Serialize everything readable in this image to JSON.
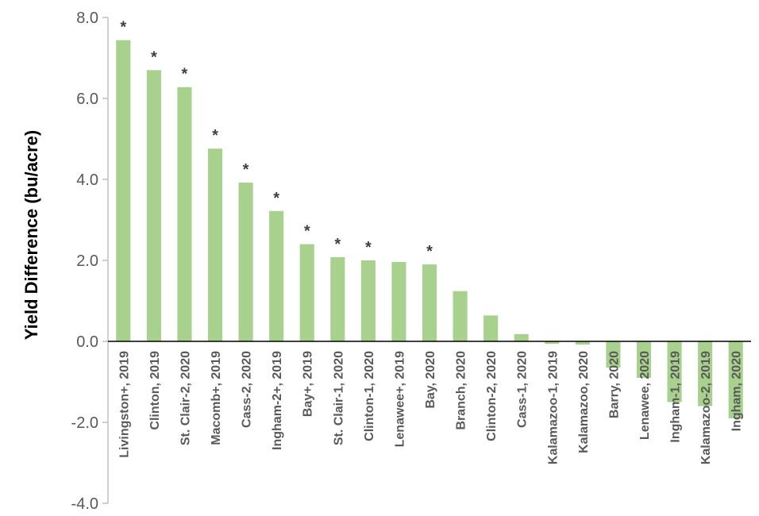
{
  "chart_data": {
    "type": "bar",
    "title": "",
    "xlabel": "",
    "ylabel": "Yield Difference (bu/acre)",
    "ylim": [
      -4.0,
      8.0
    ],
    "yticks": [
      "8.0",
      "6.0",
      "4.0",
      "2.0",
      "0.0",
      "-2.0",
      "-4.0"
    ],
    "bar_color": "#a9d18e",
    "categories": [
      "Livingston+, 2019",
      "Clinton, 2019",
      "St. Clair-2, 2020",
      "Macomb+, 2019",
      "Cass-2, 2020",
      "Ingham-2+, 2019",
      "Bay+, 2019",
      "St. Clair-1, 2020",
      "Clinton-1, 2020",
      "Lenawee+, 2019",
      "Bay, 2020",
      "Branch, 2020",
      "Clinton-2, 2020",
      "Cass-1, 2020",
      "Kalamazoo-1, 2019",
      "Kalamazoo, 2020",
      "Barry, 2020",
      "Lenawee, 2020",
      "Ingham-1, 2019",
      "Kalamazoo-2, 2019",
      "Ingham, 2020"
    ],
    "values": [
      7.44,
      6.7,
      6.28,
      4.76,
      3.92,
      3.22,
      2.4,
      2.08,
      2.0,
      1.96,
      1.9,
      1.24,
      0.64,
      0.18,
      -0.06,
      -0.08,
      -0.65,
      -0.9,
      -1.5,
      -1.6,
      -1.9
    ],
    "significant": [
      true,
      true,
      true,
      true,
      true,
      true,
      true,
      true,
      true,
      false,
      true,
      false,
      false,
      false,
      false,
      false,
      false,
      false,
      false,
      false,
      false
    ],
    "significance_marker": "*"
  }
}
